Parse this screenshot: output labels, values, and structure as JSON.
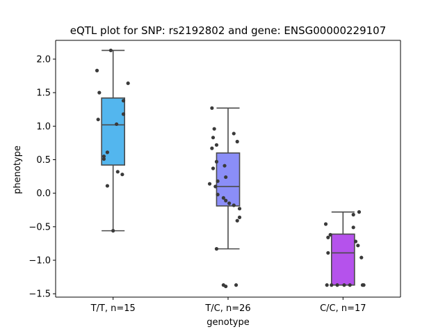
{
  "chart_data": {
    "type": "box",
    "title": "eQTL plot for SNP: rs2192802 and gene: ENSG00000229107",
    "xlabel": "genotype",
    "ylabel": "phenotype",
    "ylim": [
      -1.55,
      2.28
    ],
    "yticks": [
      -1.5,
      -1.0,
      -0.5,
      0.0,
      0.5,
      1.0,
      1.5,
      2.0
    ],
    "ytick_labels": [
      "−1.5",
      "−1.0",
      "−0.5",
      "0.0",
      "0.5",
      "1.0",
      "1.5",
      "2.0"
    ],
    "categories": [
      "T/T, n=15",
      "T/C, n=26",
      "C/C, n=17"
    ],
    "boxes": [
      {
        "q1": 0.42,
        "median": 1.02,
        "q3": 1.42,
        "whisker_low": -0.56,
        "whisker_high": 2.13,
        "color": "#53b6ee"
      },
      {
        "q1": -0.19,
        "median": 0.1,
        "q3": 0.6,
        "whisker_low": -0.83,
        "whisker_high": 1.27,
        "color": "#8b8ef8"
      },
      {
        "q1": -1.37,
        "median": -0.89,
        "q3": -0.61,
        "whisker_low": -1.37,
        "whisker_high": -0.28,
        "color": "#b552ec"
      }
    ],
    "points": [
      [
        {
          "dx": -0.02,
          "y": 2.13
        },
        {
          "dx": -0.14,
          "y": 1.83
        },
        {
          "dx": -0.12,
          "y": 1.5
        },
        {
          "dx": 0.13,
          "y": 1.64
        },
        {
          "dx": 0.09,
          "y": 1.38
        },
        {
          "dx": 0.09,
          "y": 1.18
        },
        {
          "dx": -0.13,
          "y": 1.1
        },
        {
          "dx": 0.03,
          "y": 1.03
        },
        {
          "dx": -0.05,
          "y": 0.61
        },
        {
          "dx": -0.08,
          "y": 0.55
        },
        {
          "dx": -0.08,
          "y": 0.51
        },
        {
          "dx": 0.04,
          "y": 0.32
        },
        {
          "dx": 0.08,
          "y": 0.28
        },
        {
          "dx": -0.05,
          "y": 0.11
        },
        {
          "dx": 0.0,
          "y": -0.56
        }
      ],
      [
        {
          "dx": -0.14,
          "y": 1.27
        },
        {
          "dx": -0.12,
          "y": 0.96
        },
        {
          "dx": 0.05,
          "y": 0.89
        },
        {
          "dx": -0.13,
          "y": 0.83
        },
        {
          "dx": 0.08,
          "y": 0.77
        },
        {
          "dx": -0.1,
          "y": 0.72
        },
        {
          "dx": -0.14,
          "y": 0.67
        },
        {
          "dx": -0.1,
          "y": 0.47
        },
        {
          "dx": -0.03,
          "y": 0.41
        },
        {
          "dx": -0.13,
          "y": 0.37
        },
        {
          "dx": -0.02,
          "y": 0.24
        },
        {
          "dx": -0.09,
          "y": 0.18
        },
        {
          "dx": -0.16,
          "y": 0.14
        },
        {
          "dx": -0.11,
          "y": 0.1
        },
        {
          "dx": -0.09,
          "y": -0.02
        },
        {
          "dx": -0.04,
          "y": -0.07
        },
        {
          "dx": -0.02,
          "y": -0.11
        },
        {
          "dx": 0.01,
          "y": -0.15
        },
        {
          "dx": 0.05,
          "y": -0.18
        },
        {
          "dx": 0.1,
          "y": -0.23
        },
        {
          "dx": 0.1,
          "y": -0.36
        },
        {
          "dx": 0.08,
          "y": -0.41
        },
        {
          "dx": -0.1,
          "y": -0.83
        },
        {
          "dx": -0.04,
          "y": -1.37
        },
        {
          "dx": -0.02,
          "y": -1.39
        },
        {
          "dx": 0.07,
          "y": -1.37
        }
      ],
      [
        {
          "dx": 0.14,
          "y": -0.28
        },
        {
          "dx": 0.09,
          "y": -0.32
        },
        {
          "dx": -0.15,
          "y": -0.46
        },
        {
          "dx": 0.09,
          "y": -0.51
        },
        {
          "dx": -0.11,
          "y": -0.62
        },
        {
          "dx": -0.13,
          "y": -0.66
        },
        {
          "dx": 0.11,
          "y": -0.72
        },
        {
          "dx": 0.13,
          "y": -0.78
        },
        {
          "dx": -0.13,
          "y": -0.89
        },
        {
          "dx": 0.16,
          "y": -0.96
        },
        {
          "dx": -0.14,
          "y": -1.37
        },
        {
          "dx": -0.1,
          "y": -1.37
        },
        {
          "dx": -0.05,
          "y": -1.37
        },
        {
          "dx": 0.01,
          "y": -1.37
        },
        {
          "dx": 0.06,
          "y": -1.37
        },
        {
          "dx": 0.17,
          "y": -1.37
        },
        {
          "dx": 0.18,
          "y": -1.37
        }
      ]
    ],
    "colors": {
      "point": "#3a3a3a",
      "box_edge": "#4a4a4a",
      "axis": "#000000"
    }
  }
}
